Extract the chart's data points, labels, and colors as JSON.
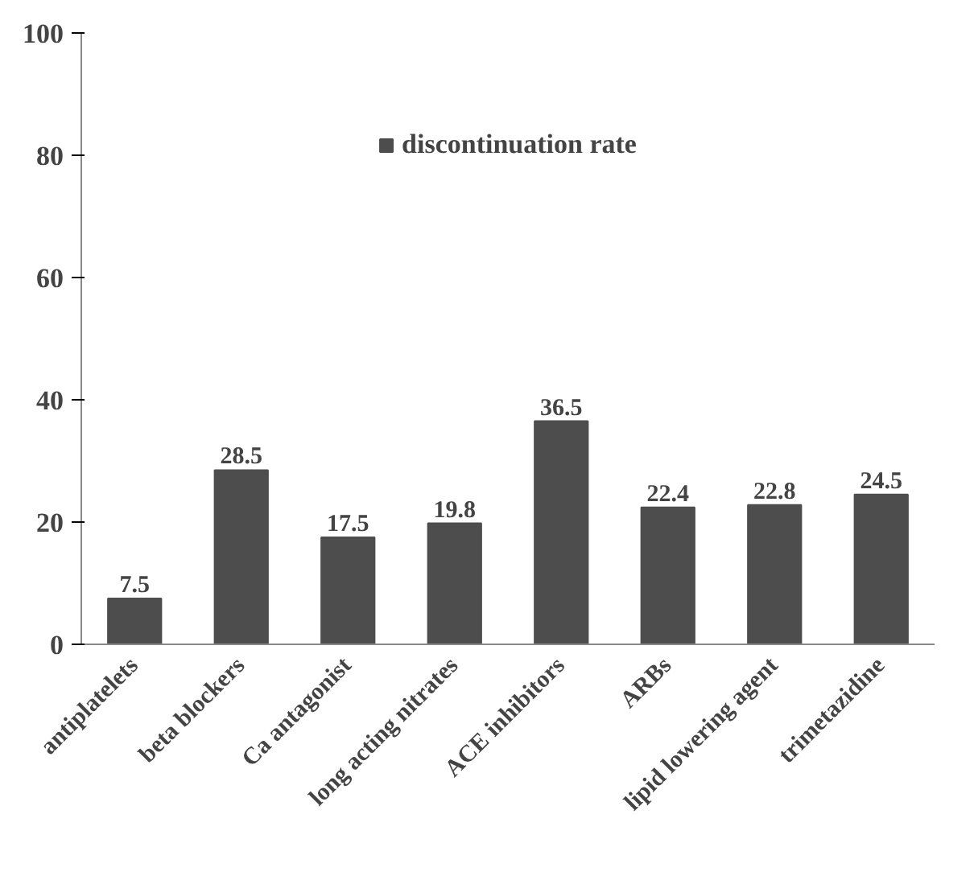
{
  "chart_data": {
    "type": "bar",
    "categories": [
      "antiplatelets",
      "beta blockers",
      "Ca antagonist",
      "long acting nitrates",
      "ACE inhibitors",
      "ARBs",
      "lipid lowering agent",
      "trimetazidine"
    ],
    "series": [
      {
        "name": "discontinuation rate",
        "color": "#4d4d4d",
        "values": [
          7.5,
          28.5,
          17.5,
          19.8,
          36.5,
          22.4,
          22.8,
          24.5
        ]
      }
    ],
    "ylim": [
      0,
      100
    ],
    "yticks": [
      0,
      20,
      40,
      60,
      80,
      100
    ],
    "grid": false,
    "legend": "top",
    "data_labels": true
  }
}
